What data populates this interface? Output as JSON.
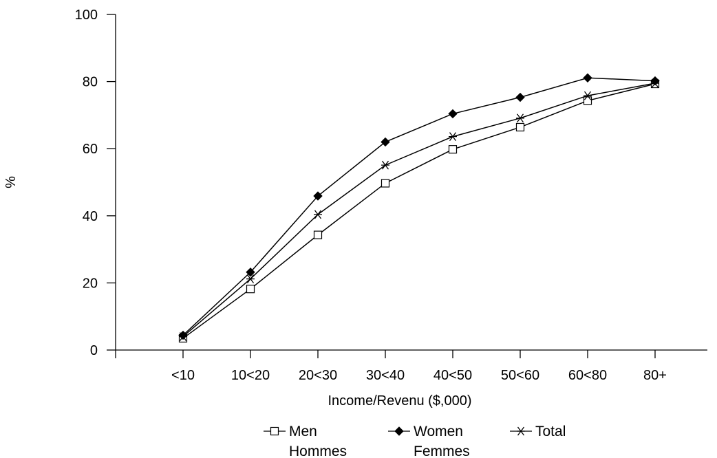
{
  "chart_data": {
    "type": "line",
    "title": "",
    "xlabel": "Income/Revenu ($,000)",
    "ylabel": "%",
    "categories": [
      "<10",
      "10<20",
      "20<30",
      "30<40",
      "40<50",
      "50<60",
      "60<80",
      "80+"
    ],
    "ylim": [
      0,
      100
    ],
    "yticks": [
      "0",
      "20",
      "40",
      "60",
      "80",
      "100"
    ],
    "grid": false,
    "legend_position": "bottom",
    "series": [
      {
        "name": "Men",
        "name2": "Hommes",
        "marker": "open-square",
        "values": [
          3.5,
          18.2,
          34.3,
          49.7,
          59.8,
          66.4,
          74.3,
          79.3
        ]
      },
      {
        "name": "Women",
        "name2": "Femmes",
        "marker": "filled-diamond",
        "values": [
          4.4,
          23.2,
          45.9,
          62.0,
          70.4,
          75.3,
          81.1,
          80.2
        ]
      },
      {
        "name": "Total",
        "name2": "",
        "marker": "star",
        "values": [
          4.0,
          21.2,
          40.4,
          55.1,
          63.6,
          69.1,
          75.8,
          79.5
        ]
      }
    ]
  }
}
